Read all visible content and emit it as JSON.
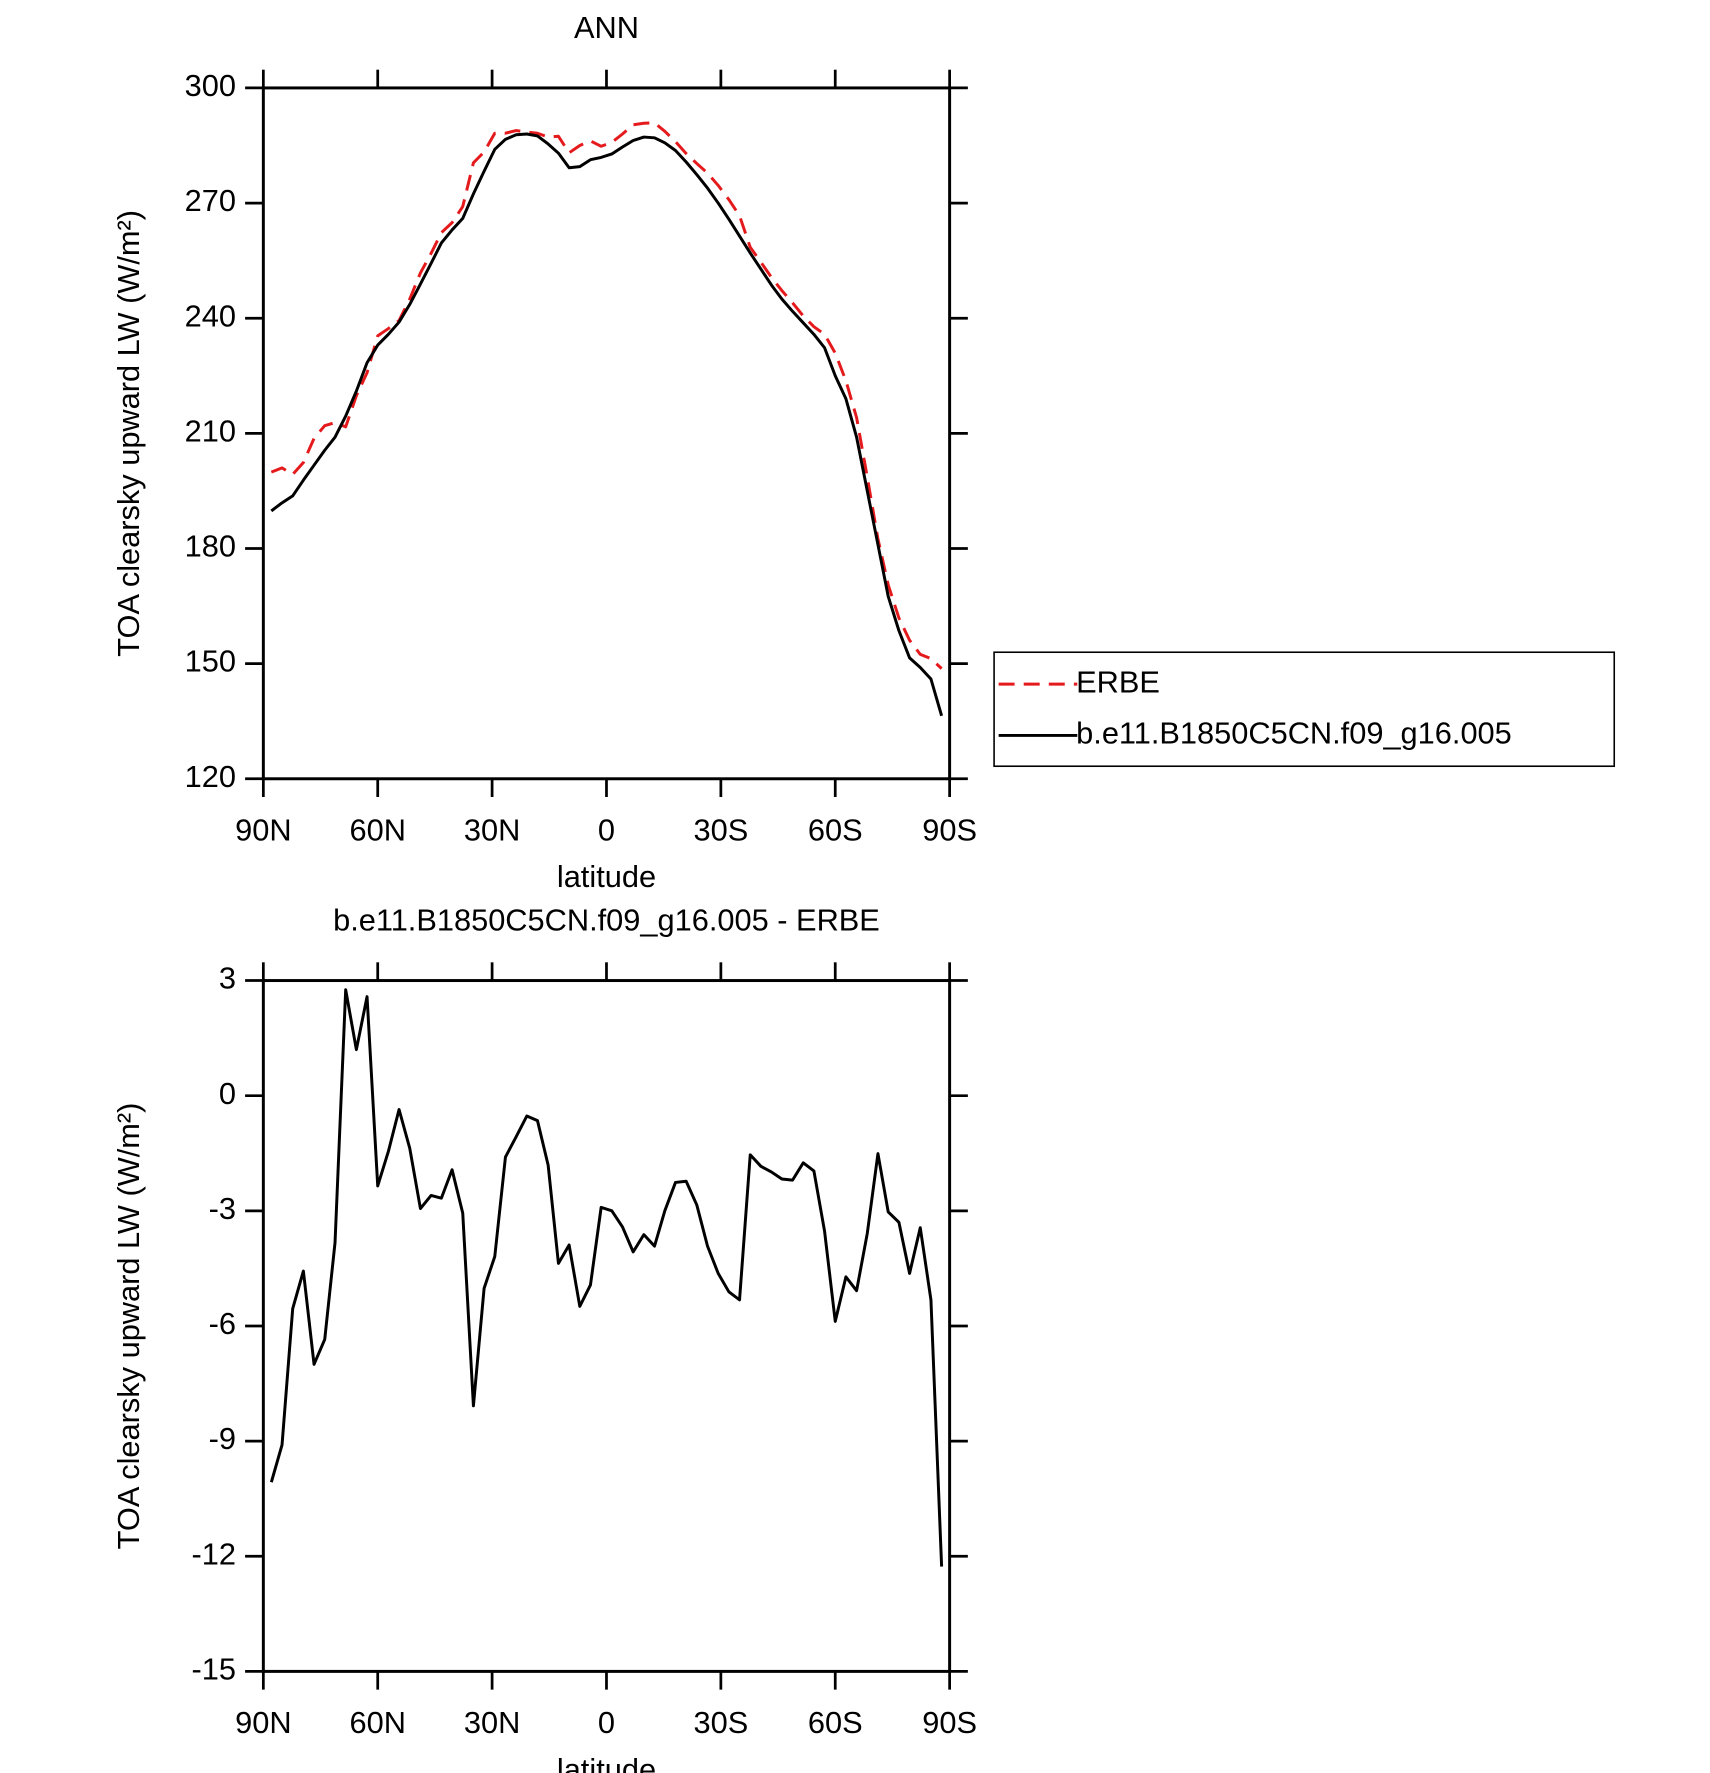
{
  "chart_data": [
    {
      "type": "line",
      "title": "ANN",
      "xlabel": "latitude",
      "ylabel": "TOA clearsky upward LW (W/m²)",
      "x": [
        87.9,
        85.1,
        82.3,
        79.5,
        76.7,
        73.9,
        71.2,
        68.4,
        65.6,
        62.8,
        60.0,
        57.2,
        54.4,
        51.6,
        48.8,
        46.0,
        43.3,
        40.5,
        37.7,
        34.9,
        32.1,
        29.3,
        26.5,
        23.7,
        20.9,
        18.1,
        15.3,
        12.6,
        9.8,
        7.0,
        4.2,
        1.4,
        -1.4,
        -4.2,
        -7.0,
        -9.8,
        -12.6,
        -15.3,
        -18.1,
        -20.9,
        -23.7,
        -26.5,
        -29.3,
        -32.1,
        -34.9,
        -37.7,
        -40.5,
        -43.3,
        -46.0,
        -48.8,
        -51.6,
        -54.4,
        -57.2,
        -60.0,
        -62.8,
        -65.6,
        -68.4,
        -71.2,
        -73.9,
        -76.7,
        -79.5,
        -82.3,
        -85.1,
        -87.9
      ],
      "series": [
        {
          "name": "ERBE",
          "color": "#e41a1c",
          "linestyle": "dashed",
          "values": [
            199.9,
            201.0,
            199.3,
            202.4,
            208.7,
            212.0,
            212.8,
            211.7,
            219.8,
            225.8,
            235.4,
            237.3,
            239.4,
            245.0,
            251.8,
            256.9,
            262.3,
            264.9,
            269.1,
            280.5,
            283.3,
            288.2,
            288.2,
            288.9,
            288.5,
            288.2,
            287.2,
            287.4,
            283.1,
            285.0,
            286.2,
            284.8,
            285.8,
            288.0,
            290.4,
            290.8,
            290.9,
            288.7,
            286.0,
            282.9,
            280.3,
            277.8,
            274.6,
            270.9,
            266.7,
            258.5,
            254.6,
            250.6,
            247.2,
            244.0,
            240.6,
            237.8,
            235.8,
            230.9,
            223.7,
            214.1,
            198.6,
            182.5,
            170.5,
            161.9,
            156.1,
            152.4,
            151.3,
            148.7
          ]
        },
        {
          "name": "b.e11.B1850C5CN.f09_g16.005",
          "color": "#000000",
          "linestyle": "solid",
          "values": [
            189.8,
            191.9,
            193.7,
            197.8,
            201.7,
            205.6,
            209.0,
            214.5,
            221.0,
            228.4,
            233.0,
            235.8,
            239.0,
            243.6,
            248.9,
            254.3,
            259.6,
            263.0,
            266.0,
            272.4,
            278.3,
            284.0,
            286.6,
            287.8,
            288.0,
            287.5,
            285.4,
            283.0,
            279.2,
            279.5,
            281.3,
            281.9,
            282.8,
            284.6,
            286.3,
            287.2,
            287.0,
            285.7,
            283.7,
            280.7,
            277.4,
            273.9,
            270.0,
            265.8,
            261.4,
            257.0,
            252.8,
            248.6,
            245.0,
            241.8,
            238.8,
            235.8,
            232.3,
            225.0,
            219.0,
            209.0,
            195.0,
            181.0,
            167.5,
            158.6,
            151.5,
            149.0,
            146.0,
            136.4
          ]
        }
      ],
      "xlim": [
        90,
        -90
      ],
      "xticks": [
        {
          "value": 90,
          "label": "90N"
        },
        {
          "value": 60,
          "label": "60N"
        },
        {
          "value": 30,
          "label": "30N"
        },
        0,
        {
          "value": -30,
          "label": "30S"
        },
        {
          "value": -60,
          "label": "60S"
        },
        {
          "value": -90,
          "label": "90S"
        }
      ],
      "ylim": [
        120,
        300
      ],
      "yticks": [
        120,
        150,
        180,
        210,
        240,
        270,
        300
      ],
      "legend": "right"
    },
    {
      "type": "line",
      "title": "b.e11.B1850C5CN.f09_g16.005 - ERBE",
      "xlabel": "latitude",
      "ylabel": "TOA clearsky upward LW (W/m²)",
      "x": [
        87.9,
        85.1,
        82.3,
        79.5,
        76.7,
        73.9,
        71.2,
        68.4,
        65.6,
        62.8,
        60.0,
        57.2,
        54.4,
        51.6,
        48.8,
        46.0,
        43.3,
        40.5,
        37.7,
        34.9,
        32.1,
        29.3,
        26.5,
        23.7,
        20.9,
        18.1,
        15.3,
        12.6,
        9.8,
        7.0,
        4.2,
        1.4,
        -1.4,
        -4.2,
        -7.0,
        -9.8,
        -12.6,
        -15.3,
        -18.1,
        -20.9,
        -23.7,
        -26.5,
        -29.3,
        -32.1,
        -34.9,
        -37.7,
        -40.5,
        -43.3,
        -46.0,
        -48.8,
        -51.6,
        -54.4,
        -57.2,
        -60.0,
        -62.8,
        -65.6,
        -68.4,
        -71.2,
        -73.9,
        -76.7,
        -79.5,
        -82.3,
        -85.1,
        -87.9
      ],
      "color": "#000000",
      "values": [
        -10.07,
        -9.1,
        -5.55,
        -4.57,
        -7.0,
        -6.35,
        -3.83,
        2.76,
        1.2,
        2.58,
        -2.35,
        -1.45,
        -0.36,
        -1.37,
        -2.94,
        -2.6,
        -2.67,
        -1.93,
        -3.06,
        -8.08,
        -5.02,
        -4.19,
        -1.6,
        -1.07,
        -0.53,
        -0.65,
        -1.81,
        -4.37,
        -3.89,
        -5.49,
        -4.93,
        -2.91,
        -3.0,
        -3.42,
        -4.07,
        -3.62,
        -3.92,
        -3.0,
        -2.26,
        -2.23,
        -2.85,
        -3.92,
        -4.63,
        -5.11,
        -5.32,
        -1.54,
        -1.84,
        -1.99,
        -2.17,
        -2.2,
        -1.75,
        -1.96,
        -3.53,
        -5.88,
        -4.72,
        -5.08,
        -3.59,
        -1.51,
        -3.03,
        -3.3,
        -4.63,
        -3.44,
        -5.32,
        -12.27
      ],
      "xlim": [
        90,
        -90
      ],
      "xticks": [
        {
          "value": 90,
          "label": "90N"
        },
        {
          "value": 60,
          "label": "60N"
        },
        {
          "value": 30,
          "label": "30N"
        },
        0,
        {
          "value": -30,
          "label": "30S"
        },
        {
          "value": -60,
          "label": "60S"
        },
        {
          "value": -90,
          "label": "90S"
        }
      ],
      "ylim": [
        -15,
        3
      ],
      "yticks": [
        -15,
        -12,
        -9,
        -6,
        -3,
        0,
        3
      ]
    }
  ]
}
